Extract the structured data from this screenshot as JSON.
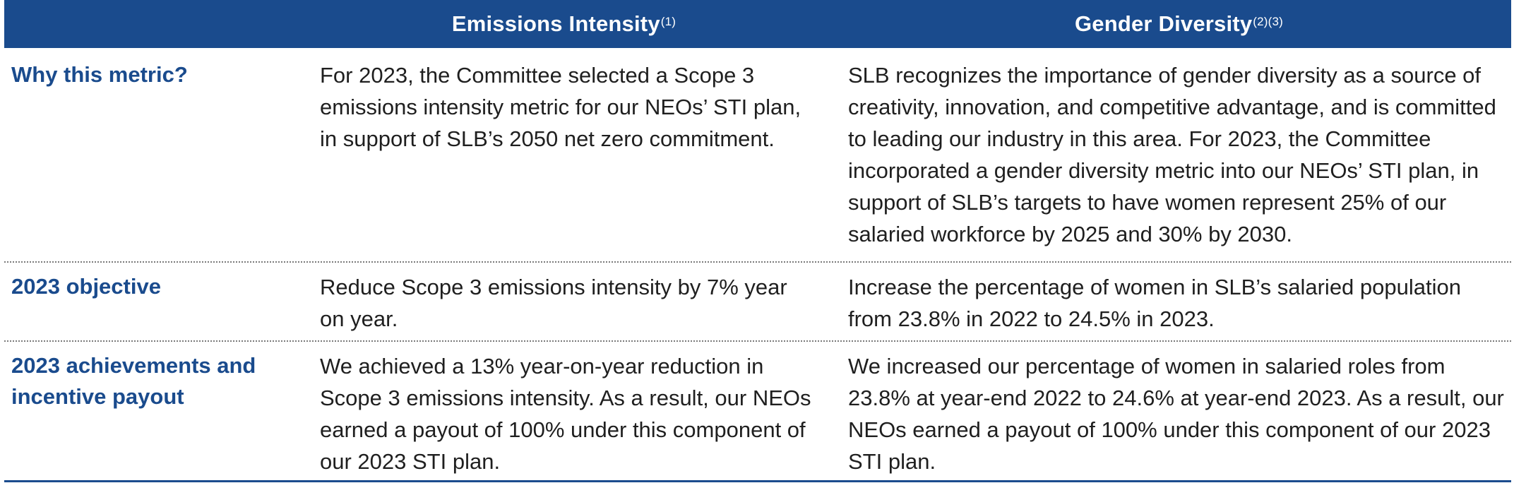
{
  "header": {
    "col1_title": "Emissions Intensity",
    "col1_note": "(1)",
    "col2_title": "Gender Diversity",
    "col2_note": "(2)(3)"
  },
  "rows": [
    {
      "label": "Why this metric?",
      "emissions": "For 2023, the Committee selected a Scope 3 emissions intensity metric for our NEOs’ STI plan, in support of SLB’s 2050 net zero commitment.",
      "gender": "SLB recognizes the importance of gender diversity as a source of creativity, innovation, and competitive advantage, and is committed to leading our industry in this area. For 2023, the Committee incorporated a gender diversity metric into our NEOs’ STI plan, in support of SLB’s targets to have women represent 25% of our salaried workforce by 2025 and 30% by 2030."
    },
    {
      "label": "2023 objective",
      "emissions": "Reduce Scope 3 emissions intensity by 7% year on year.",
      "gender": "Increase the percentage of women in SLB’s salaried population from 23.8% in 2022 to 24.5% in 2023."
    },
    {
      "label": "2023 achievements and incentive payout",
      "emissions": "We achieved a 13% year-on-year reduction in Scope 3 emissions intensity. As a result, our NEOs earned a payout of 100% under this component of our 2023 STI plan.",
      "gender": "We increased our percentage of women in salaried roles from 23.8% at year-end 2022 to 24.6% at year-end 2023. As a result, our NEOs earned a payout of 100% under this component of our 2023 STI plan."
    }
  ],
  "colors": {
    "header_bg": "#1a4b8d",
    "label_text": "#1a4b8d",
    "body_text": "#1f1f1f"
  }
}
